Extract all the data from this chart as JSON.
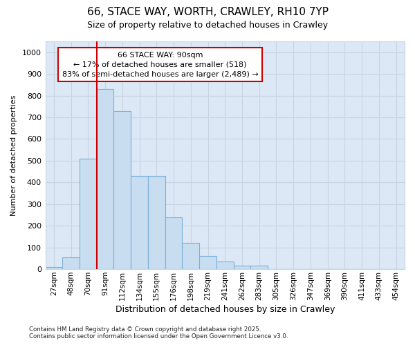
{
  "title_line1": "66, STACE WAY, WORTH, CRAWLEY, RH10 7YP",
  "title_line2": "Size of property relative to detached houses in Crawley",
  "xlabel": "Distribution of detached houses by size in Crawley",
  "ylabel": "Number of detached properties",
  "categories": [
    "27sqm",
    "48sqm",
    "70sqm",
    "91sqm",
    "112sqm",
    "134sqm",
    "155sqm",
    "176sqm",
    "198sqm",
    "219sqm",
    "241sqm",
    "262sqm",
    "283sqm",
    "305sqm",
    "326sqm",
    "347sqm",
    "369sqm",
    "390sqm",
    "411sqm",
    "433sqm",
    "454sqm"
  ],
  "values": [
    10,
    55,
    510,
    830,
    730,
    430,
    430,
    240,
    120,
    60,
    35,
    15,
    15,
    0,
    0,
    0,
    0,
    0,
    0,
    0,
    0
  ],
  "bar_color": "#c8ddf0",
  "bar_edge_color": "#7ab0d8",
  "grid_color": "#c8d4e0",
  "bg_color": "#ffffff",
  "plot_bg_color": "#dce8f5",
  "vline_color": "#cc0000",
  "vline_x_index": 3,
  "annotation_text": "66 STACE WAY: 90sqm\n← 17% of detached houses are smaller (518)\n83% of semi-detached houses are larger (2,489) →",
  "annotation_box_edgecolor": "#cc0000",
  "footer_line1": "Contains HM Land Registry data © Crown copyright and database right 2025.",
  "footer_line2": "Contains public sector information licensed under the Open Government Licence v3.0.",
  "ylim": [
    0,
    1050
  ],
  "yticks": [
    0,
    100,
    200,
    300,
    400,
    500,
    600,
    700,
    800,
    900,
    1000
  ]
}
